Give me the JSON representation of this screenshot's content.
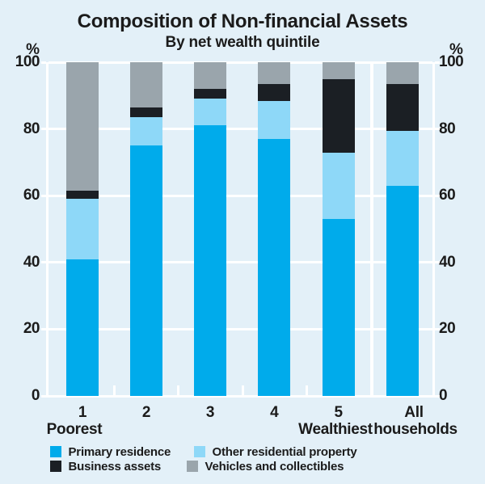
{
  "chart_data": {
    "type": "bar",
    "stacked": true,
    "title": "Composition of Non-financial Assets",
    "subtitle": "By net wealth quintile",
    "ylabel": "%",
    "ylim": [
      0,
      100
    ],
    "yticks": [
      0,
      20,
      40,
      60,
      80,
      100
    ],
    "grid": true,
    "legend_position": "bottom",
    "categories": [
      "1",
      "2",
      "3",
      "4",
      "5",
      "All"
    ],
    "category_sublabels": [
      "Poorest",
      "",
      "",
      "",
      "Wealthiest",
      "households"
    ],
    "series": [
      {
        "name": "Primary residence",
        "color": "#00ABEB",
        "values": [
          41,
          75,
          81,
          77,
          53,
          63
        ]
      },
      {
        "name": "Other residential property",
        "color": "#8ED8F8",
        "values": [
          18,
          8.5,
          8,
          11.5,
          20,
          16.5
        ]
      },
      {
        "name": "Business assets",
        "color": "#1B1F24",
        "values": [
          2.5,
          3,
          3,
          5,
          22,
          14
        ]
      },
      {
        "name": "Vehicles and collectibles",
        "color": "#9AA5AC",
        "values": [
          38.5,
          13.5,
          8,
          6.5,
          5,
          6.5
        ]
      }
    ]
  },
  "colors": {
    "background": "#E3F0F8",
    "gridline": "#FFFFFF",
    "text": "#1B1B1B"
  }
}
